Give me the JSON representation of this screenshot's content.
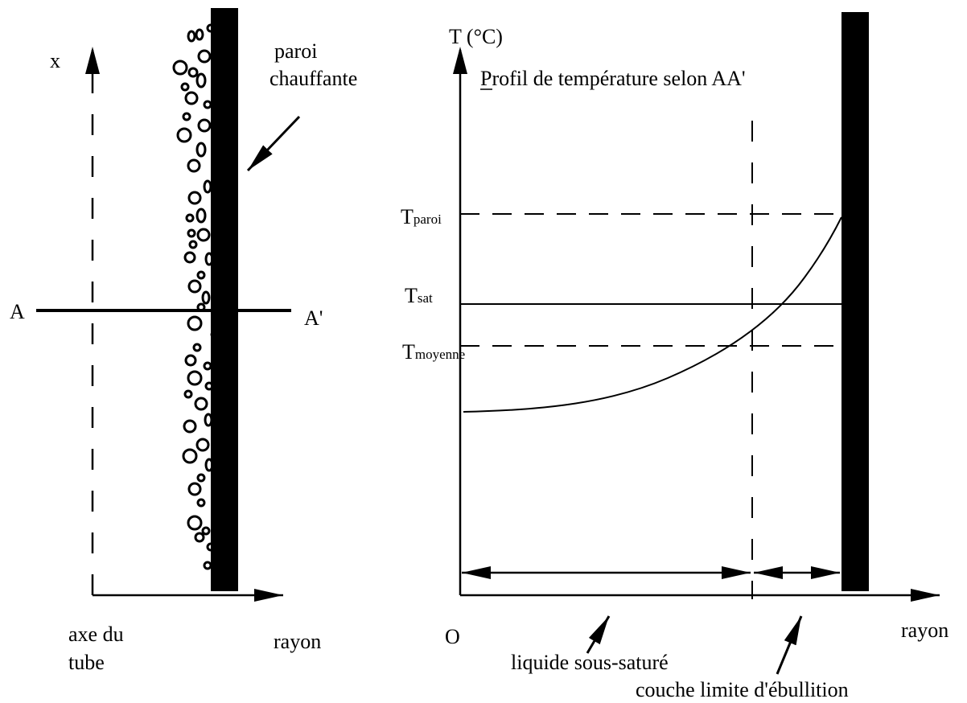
{
  "left_panel": {
    "axis_label": "x",
    "wall_label": [
      "paroi",
      "chauffante"
    ],
    "section_start": "A",
    "section_end": "A'",
    "tube_axis_label": [
      "axe du",
      "tube"
    ],
    "radius_label": "rayon"
  },
  "right_panel": {
    "y_axis_label": "T (°C)",
    "title": "Profil de température selon AA'",
    "levels": [
      {
        "symbol": "T",
        "subscript": "paroi"
      },
      {
        "symbol": "T",
        "subscript": "sat"
      },
      {
        "symbol": "T",
        "subscript": "moyenne"
      }
    ],
    "origin_label": "O",
    "x_axis_label": "rayon",
    "zones": [
      "liquide sous-saturé",
      "couche limite d'ébullition"
    ]
  }
}
